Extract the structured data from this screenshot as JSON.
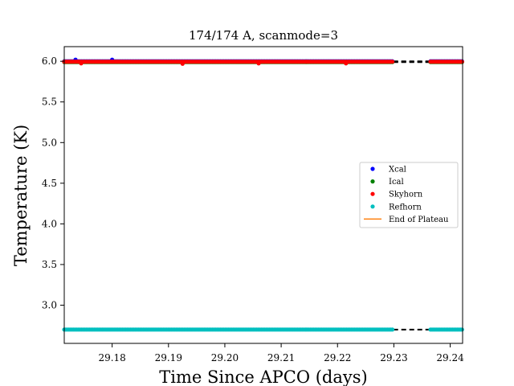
{
  "chart_data": {
    "type": "scatter",
    "title": "174/174 A, scanmode=3",
    "xlabel": "Time Since APCO (days)",
    "ylabel": "Temperature (K)",
    "xlim": [
      29.1715,
      29.2422
    ],
    "ylim": [
      2.53,
      6.18
    ],
    "x_ticks": [
      "29.18",
      "29.19",
      "29.20",
      "29.21",
      "29.22",
      "29.23",
      "29.24"
    ],
    "y_ticks": [
      "3.0",
      "3.5",
      "4.0",
      "4.5",
      "5.0",
      "5.5",
      "6.0"
    ],
    "gap": [
      29.2299,
      29.2365
    ],
    "series": [
      {
        "name": "Xcal",
        "color": "#0000ff",
        "marker": "dot",
        "value": 6.0,
        "spikes": [
          [
            29.1735,
            6.02
          ],
          [
            29.18,
            6.02
          ]
        ]
      },
      {
        "name": "Ical",
        "color": "#008000",
        "marker": "dot",
        "value": 5.99,
        "spikes": []
      },
      {
        "name": "Skyhorn",
        "color": "#ff0000",
        "marker": "dot",
        "value": 5.995,
        "spikes": [
          [
            29.1745,
            5.975
          ],
          [
            29.1925,
            5.97
          ],
          [
            29.206,
            5.975
          ],
          [
            29.2215,
            5.975
          ]
        ]
      },
      {
        "name": "Refhorn",
        "color": "#00bfbf",
        "marker": "dot",
        "value": 2.7,
        "spikes": []
      },
      {
        "name": "End of Plateau",
        "color": "#ff7f0e",
        "marker": "line"
      }
    ],
    "legend": "center-right"
  }
}
